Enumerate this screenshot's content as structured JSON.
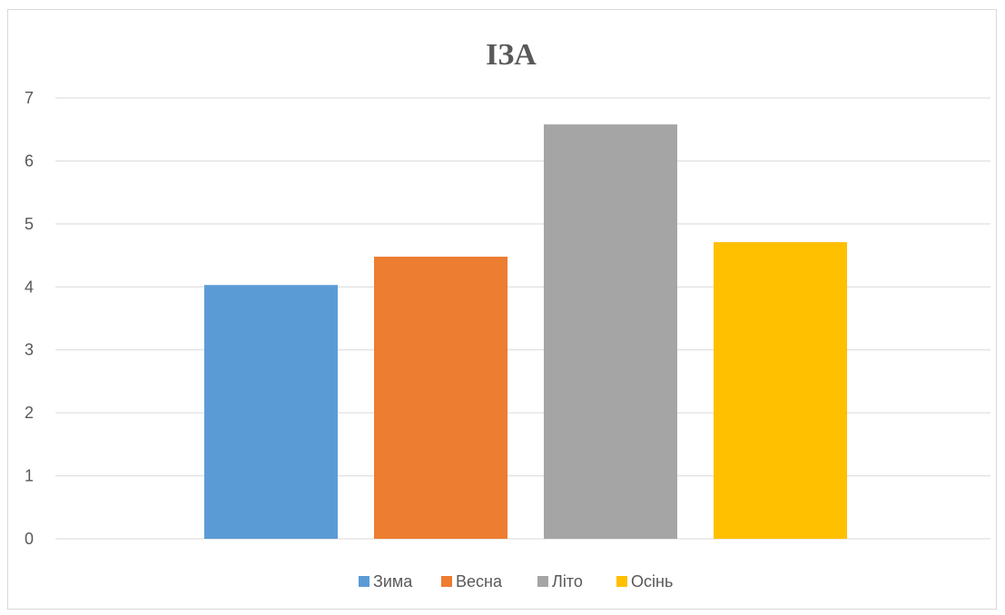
{
  "chart_data": {
    "type": "bar",
    "title": "ІЗА",
    "xlabel": "",
    "ylabel": "",
    "ylim": [
      0,
      7
    ],
    "yticks": [
      0,
      1,
      2,
      3,
      4,
      5,
      6,
      7
    ],
    "grid": true,
    "legend_position": "bottom",
    "series": [
      {
        "name": "Зима",
        "values": [
          4.03
        ],
        "color": "#5b9bd5"
      },
      {
        "name": "Весна",
        "values": [
          4.48
        ],
        "color": "#ed7d31"
      },
      {
        "name": "Літо",
        "values": [
          6.58
        ],
        "color": "#a5a5a5"
      },
      {
        "name": "Осінь",
        "values": [
          4.71
        ],
        "color": "#ffc000"
      }
    ]
  }
}
